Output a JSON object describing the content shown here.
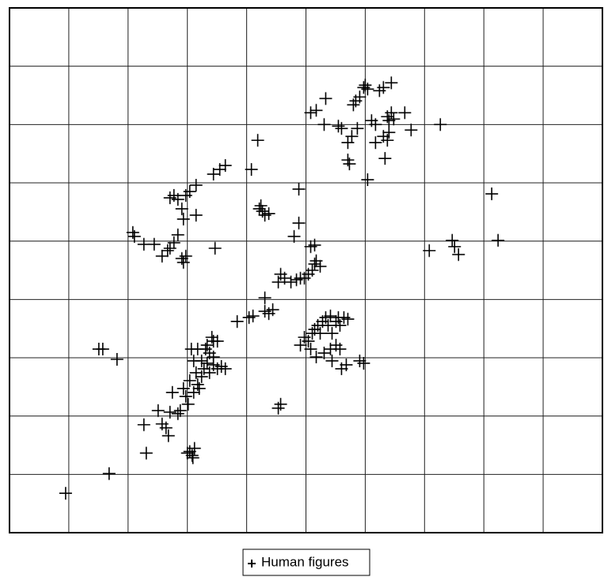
{
  "chart_data": {
    "type": "scatter",
    "series": [
      {
        "name": "Human figures",
        "color": "#000000",
        "x": [
          71,
          126,
          173,
          231,
          228,
          234,
          225,
          232,
          170,
          198,
          201,
          188,
          193,
          203,
          213,
          216,
          206,
          220,
          228,
          223,
          233,
          238,
          236,
          243,
          246,
          250,
          253,
          258,
          263,
          268,
          253,
          258,
          256,
          263,
          248,
          243,
          233,
          230,
          238,
          250,
          258,
          273,
          240,
          226,
          113,
          118,
          136,
          340,
          343,
          288,
          303,
          308,
          323,
          328,
          333,
          323,
          343,
          340,
          348,
          356,
          363,
          368,
          373,
          378,
          383,
          386,
          388,
          393,
          381,
          386,
          360,
          366,
          366,
          373,
          378,
          383,
          386,
          390,
          393,
          396,
          400,
          403,
          406,
          408,
          413,
          416,
          418,
          423,
          428,
          381,
          388,
          398,
          406,
          413,
          408,
          420,
          426,
          443,
          448,
          418,
          368,
          156,
          158,
          170,
          183,
          193,
          200,
          203,
          208,
          213,
          218,
          220,
          223,
          203,
          208,
          213,
          218,
          220,
          223,
          228,
          236,
          236,
          258,
          266,
          273,
          260,
          306,
          314,
          318,
          320,
          323,
          328,
          316,
          381,
          388,
          400,
          398,
          416,
          420,
          428,
          433,
          428,
          430,
          435,
          438,
          443,
          448,
          450,
          453,
          458,
          463,
          468,
          473,
          483,
          478,
          480,
          483,
          486,
          480,
          473,
          478,
          463,
          500,
          508,
          545,
          475,
          453,
          440,
          610,
          618,
          560,
          563,
          568,
          531
        ],
        "y": [
          50,
          75,
          101,
          98,
          103,
          107,
          101,
          95,
          137,
          133,
          123,
          155,
          138,
          153,
          151,
          155,
          178,
          183,
          193,
          173,
          178,
          188,
          203,
          198,
          208,
          215,
          203,
          213,
          208,
          211,
          228,
          243,
          248,
          243,
          233,
          218,
          218,
          233,
          233,
          238,
          223,
          208,
          183,
          163,
          233,
          233,
          220,
          158,
          163,
          268,
          273,
          275,
          281,
          278,
          283,
          298,
          328,
          318,
          323,
          318,
          321,
          323,
          323,
          328,
          333,
          341,
          345,
          338,
          363,
          365,
          376,
          393,
          436,
          248,
          243,
          253,
          258,
          263,
          253,
          268,
          273,
          263,
          275,
          253,
          268,
          273,
          263,
          273,
          271,
          233,
          223,
          228,
          233,
          238,
          218,
          208,
          213,
          218,
          215,
          233,
          238,
          381,
          376,
          366,
          366,
          351,
          358,
          361,
          368,
          378,
          348,
          343,
          351,
          425,
          428,
          423,
          411,
          398,
          428,
          433,
          441,
          403,
          455,
          461,
          466,
          361,
          461,
          498,
          415,
          408,
          403,
          405,
          411,
          533,
          536,
          551,
          518,
          516,
          513,
          495,
          503,
          473,
          468,
          543,
          548,
          553,
          565,
          568,
          563,
          523,
          518,
          561,
          565,
          571,
          528,
          523,
          533,
          525,
          508,
          503,
          498,
          495,
          533,
          511,
          518,
          475,
          448,
          513,
          430,
          371,
          371,
          363,
          353,
          358
        ]
      }
    ],
    "xlim": [
      0,
      750
    ],
    "ylim": [
      0,
      666
    ],
    "xticks": [
      0,
      75,
      150,
      225,
      300,
      375,
      450,
      525,
      600,
      675,
      750
    ],
    "yticks": [
      0,
      74,
      148,
      222,
      296,
      370,
      444,
      518,
      592,
      666
    ],
    "grid": true,
    "legend": "bottom"
  }
}
